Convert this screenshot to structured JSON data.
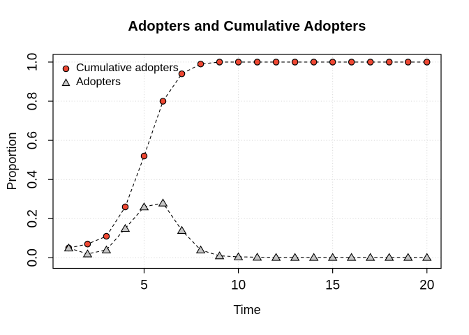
{
  "chart_data": {
    "type": "line",
    "title": "Adopters and Cumulative Adopters",
    "xlabel": "Time",
    "ylabel": "Proportion",
    "x": [
      1,
      2,
      3,
      4,
      5,
      6,
      7,
      8,
      9,
      10,
      11,
      12,
      13,
      14,
      15,
      16,
      17,
      18,
      19,
      20
    ],
    "series": [
      {
        "name": "Cumulative adopters",
        "marker": "circle",
        "marker_fill": "#ee4833",
        "marker_stroke": "#000000",
        "line_color": "#000000",
        "line_style": "dashed",
        "values": [
          0.05,
          0.07,
          0.11,
          0.26,
          0.52,
          0.8,
          0.94,
          0.99,
          1.0,
          1.0,
          1.0,
          1.0,
          1.0,
          1.0,
          1.0,
          1.0,
          1.0,
          1.0,
          1.0,
          1.0
        ]
      },
      {
        "name": "Adopters",
        "marker": "triangle",
        "marker_fill": "#c6c6c6",
        "marker_stroke": "#000000",
        "line_color": "#000000",
        "line_style": "dashed",
        "values": [
          0.05,
          0.02,
          0.04,
          0.15,
          0.26,
          0.28,
          0.14,
          0.04,
          0.01,
          0.005,
          0.003,
          0.002,
          0.002,
          0.002,
          0.002,
          0.002,
          0.002,
          0.002,
          0.002,
          0.002
        ]
      }
    ],
    "x_ticks": [
      5,
      10,
      15,
      20
    ],
    "x_tick_labels": [
      "5",
      "10",
      "15",
      "20"
    ],
    "y_ticks": [
      0,
      0.2,
      0.4,
      0.6,
      0.8,
      1
    ],
    "y_tick_labels": [
      "0.0",
      "0.2",
      "0.4",
      "0.6",
      "0.8",
      "1.0"
    ],
    "xlim": [
      0.17,
      20.75
    ],
    "ylim": [
      -0.054,
      1.039
    ],
    "grid": {
      "show": true,
      "color": "#d9d9d9",
      "style": "dotted"
    },
    "legend": {
      "position": "top-left"
    },
    "axis_color": "#000000",
    "text_color": "#000000",
    "background": "#ffffff"
  }
}
